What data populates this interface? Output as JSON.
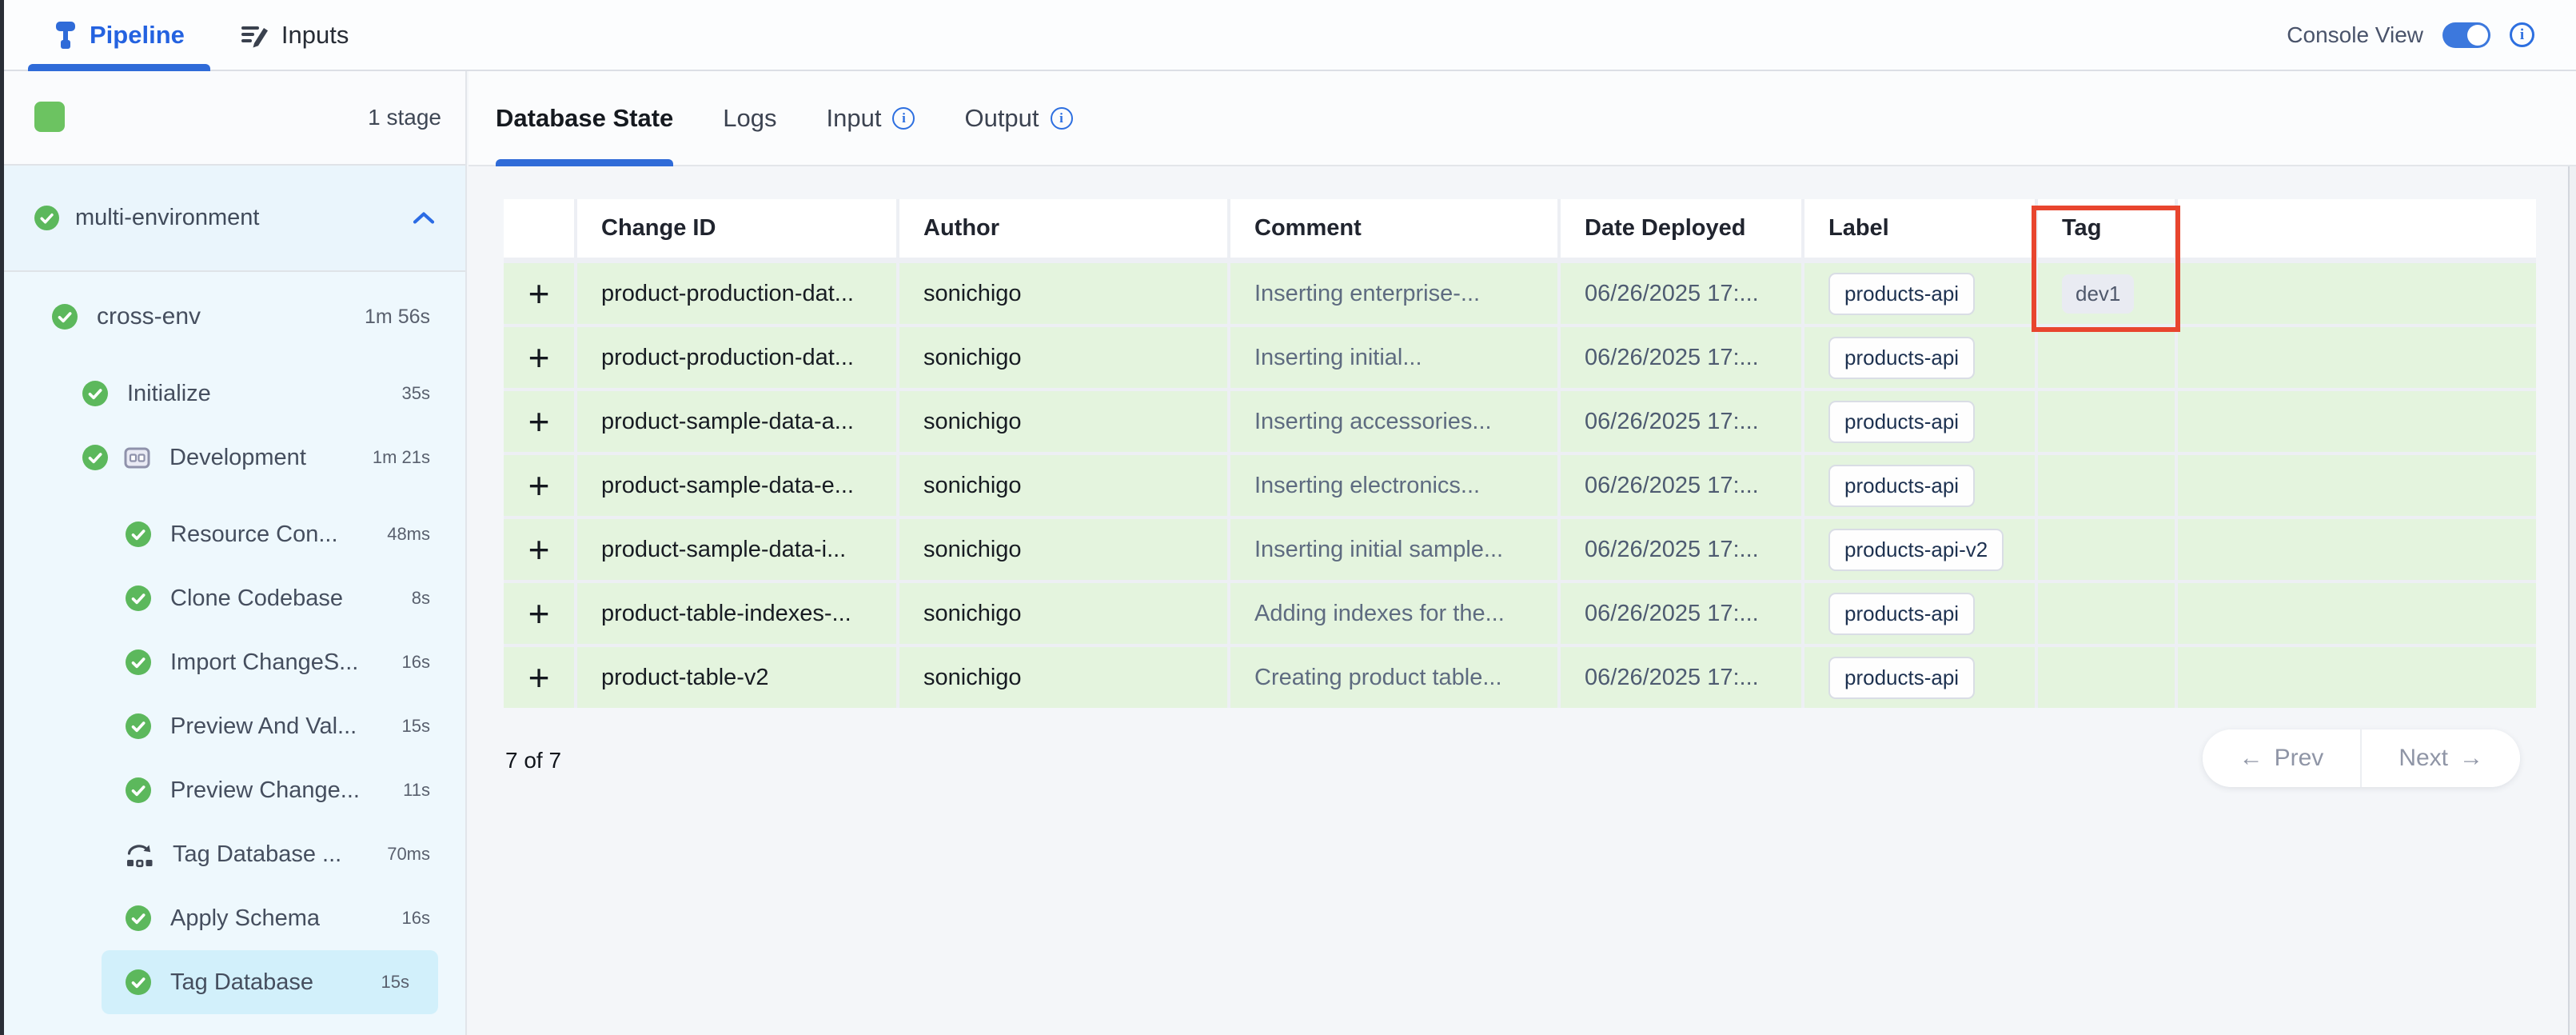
{
  "top_bar": {
    "pipeline_tab": "Pipeline",
    "inputs_tab": "Inputs",
    "console_view_label": "Console View",
    "console_toggle_on": true
  },
  "sidebar": {
    "stage_count": "1 stage",
    "stage_group_label": "multi-environment",
    "steps": [
      {
        "label": "cross-env",
        "duration": "1m 56s",
        "indent": 0,
        "icon": "check",
        "gap_after": true
      },
      {
        "label": "Initialize",
        "duration": "35s",
        "indent": 1,
        "icon": "check"
      },
      {
        "label": "Development",
        "duration": "1m 21s",
        "indent": 1,
        "icon": "check",
        "extra_icon": "matrix",
        "gap_after": true
      },
      {
        "label": "Resource Con...",
        "duration": "48ms",
        "indent": 2,
        "icon": "check"
      },
      {
        "label": "Clone Codebase",
        "duration": "8s",
        "indent": 2,
        "icon": "check"
      },
      {
        "label": "Import ChangeS...",
        "duration": "16s",
        "indent": 2,
        "icon": "check"
      },
      {
        "label": "Preview And Val...",
        "duration": "15s",
        "indent": 2,
        "icon": "check"
      },
      {
        "label": "Preview Change...",
        "duration": "11s",
        "indent": 2,
        "icon": "check"
      },
      {
        "label": "Tag Database ...",
        "duration": "70ms",
        "indent": 2,
        "icon": "rollback"
      },
      {
        "label": "Apply Schema",
        "duration": "16s",
        "indent": 2,
        "icon": "check"
      },
      {
        "label": "Tag Database",
        "duration": "15s",
        "indent": 2,
        "icon": "check",
        "selected": true
      }
    ]
  },
  "main": {
    "tabs": [
      {
        "label": "Database State",
        "active": true,
        "info": false
      },
      {
        "label": "Logs",
        "active": false,
        "info": false
      },
      {
        "label": "Input",
        "active": false,
        "info": true
      },
      {
        "label": "Output",
        "active": false,
        "info": true
      }
    ],
    "table": {
      "expand_icon": "+",
      "columns": [
        "",
        "Change ID",
        "Author",
        "Comment",
        "Date Deployed",
        "Label",
        "Tag",
        ""
      ],
      "rows": [
        {
          "change_id": "product-production-dat...",
          "author": "sonichigo",
          "comment": "Inserting enterprise-...",
          "date": "06/26/2025 17:...",
          "label": "products-api",
          "tag": "dev1"
        },
        {
          "change_id": "product-production-dat...",
          "author": "sonichigo",
          "comment": "Inserting initial...",
          "date": "06/26/2025 17:...",
          "label": "products-api",
          "tag": ""
        },
        {
          "change_id": "product-sample-data-a...",
          "author": "sonichigo",
          "comment": "Inserting accessories...",
          "date": "06/26/2025 17:...",
          "label": "products-api",
          "tag": ""
        },
        {
          "change_id": "product-sample-data-e...",
          "author": "sonichigo",
          "comment": "Inserting electronics...",
          "date": "06/26/2025 17:...",
          "label": "products-api",
          "tag": ""
        },
        {
          "change_id": "product-sample-data-i...",
          "author": "sonichigo",
          "comment": "Inserting initial sample...",
          "date": "06/26/2025 17:...",
          "label": "products-api-v2",
          "tag": ""
        },
        {
          "change_id": "product-table-indexes-...",
          "author": "sonichigo",
          "comment": "Adding indexes for the...",
          "date": "06/26/2025 17:...",
          "label": "products-api",
          "tag": ""
        },
        {
          "change_id": "product-table-v2",
          "author": "sonichigo",
          "comment": "Creating product table...",
          "date": "06/26/2025 17:...",
          "label": "products-api",
          "tag": ""
        }
      ],
      "row_count": "7 of 7"
    },
    "pagination": {
      "prev_arrow": "←",
      "prev_label": "Prev",
      "next_label": "Next",
      "next_arrow": "→"
    }
  },
  "colors": {
    "accent_blue": "#2f6bd8",
    "success_green": "#5cb85c",
    "stage_square_green": "#6cc361",
    "row_green": "#e4f4de",
    "sidebar_azure": "#eef8fd",
    "selected_step_blue": "#d2f0fb",
    "annotation_red": "#e8452e"
  }
}
